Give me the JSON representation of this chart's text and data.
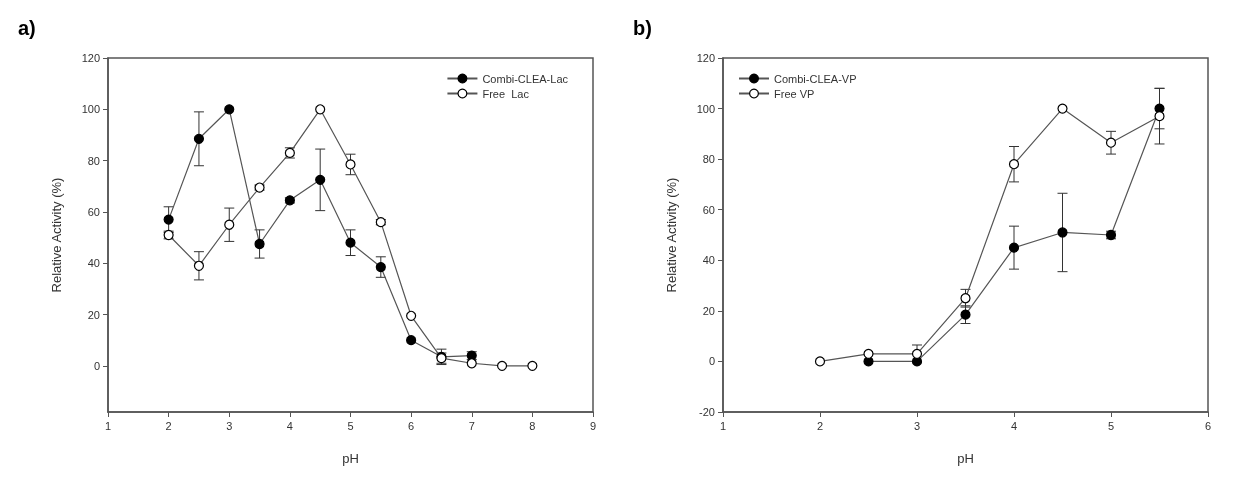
{
  "chart_data": [
    {
      "type": "line",
      "title": "a)",
      "xlabel": "pH",
      "ylabel": "Relative Activity (%)",
      "xlim": [
        1,
        9
      ],
      "xticks": [
        1,
        2,
        3,
        4,
        5,
        6,
        7,
        8,
        9
      ],
      "ylim": [
        -18,
        120
      ],
      "yticks": [
        0,
        20,
        40,
        60,
        80,
        100,
        120
      ],
      "legend": "top right",
      "marker": "circle",
      "line_style": "solid",
      "series": [
        {
          "name": "Combi-CLEA-Lac",
          "color": "#000000",
          "x": [
            2,
            2.5,
            3,
            3.5,
            4,
            4.5,
            5,
            5.5,
            6,
            6.5,
            7
          ],
          "values": [
            57,
            88.5,
            100,
            47.5,
            64.5,
            72.5,
            48,
            38.5,
            10,
            3.5,
            4
          ],
          "errors": [
            5,
            10.5,
            null,
            5.5,
            1,
            12,
            5,
            4,
            null,
            3,
            1.5
          ]
        },
        {
          "name": "Free  Lac",
          "color": "#ffffff",
          "x": [
            2,
            2.5,
            3,
            3.5,
            4,
            4.5,
            5,
            5.5,
            6,
            6.5,
            7,
            7.5,
            8
          ],
          "values": [
            51,
            39,
            55,
            69.5,
            83,
            100,
            78.5,
            56,
            19.5,
            3,
            1,
            0,
            0
          ],
          "errors": [
            1.5,
            5.5,
            6.5,
            1,
            2,
            null,
            4,
            1,
            null,
            2,
            null,
            null,
            null
          ]
        }
      ]
    },
    {
      "type": "line",
      "title": "b)",
      "xlabel": "pH",
      "ylabel": "Relative Activity (%)",
      "xlim": [
        1,
        6
      ],
      "xticks": [
        1,
        2,
        3,
        4,
        5,
        6
      ],
      "ylim": [
        -20,
        120
      ],
      "yticks": [
        -20,
        0,
        20,
        40,
        60,
        80,
        100,
        120
      ],
      "legend": "top left",
      "marker": "circle",
      "line_style": "solid",
      "series": [
        {
          "name": "Combi-CLEA-VP",
          "color": "#000000",
          "x": [
            2.5,
            3,
            3.5,
            4,
            4.5,
            5,
            5.5
          ],
          "values": [
            0,
            0,
            18.5,
            45,
            51,
            50,
            100
          ],
          "errors": [
            null,
            null,
            3.5,
            8.5,
            15.5,
            1.5,
            8
          ]
        },
        {
          "name": "Free VP",
          "color": "#ffffff",
          "x": [
            2,
            2.5,
            3,
            3.5,
            4,
            4.5,
            5,
            5.5
          ],
          "values": [
            0,
            3,
            3,
            25,
            78,
            100,
            86.5,
            97
          ],
          "errors": [
            null,
            null,
            3.5,
            3.5,
            7,
            null,
            4.5,
            11
          ]
        }
      ]
    }
  ]
}
